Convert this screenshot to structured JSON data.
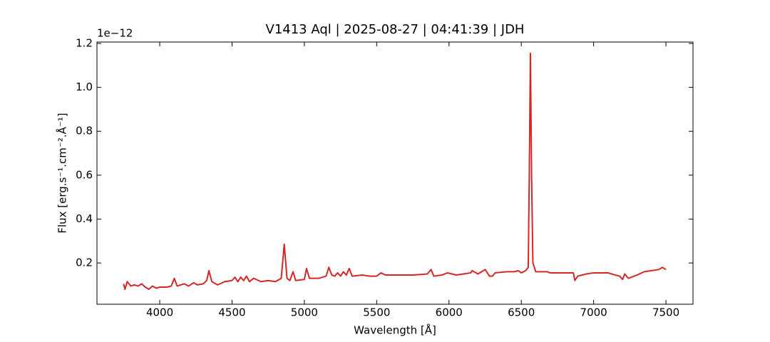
{
  "chart_data": {
    "type": "line",
    "title": "V1413 Aql | 2025-08-27 | 04:41:39 | JDH",
    "x_label": "Wavelength [Å]",
    "y_label": "Flux [erg.s⁻¹.cm⁻².Å⁻¹]",
    "y_offset_label": "1e−12",
    "xlim": [
      3566,
      7687
    ],
    "ylim": [
      0.012,
      1.2065
    ],
    "xticks": [
      4000,
      4500,
      5000,
      5500,
      6000,
      6500,
      7000,
      7500
    ],
    "yticks": [
      0.2,
      0.4,
      0.6,
      0.8,
      {
        "value": 1,
        "label": "1.0"
      },
      1.2
    ],
    "series": [
      {
        "color": "#d62728",
        "x": [
          3750,
          3760,
          3775,
          3800,
          3825,
          3850,
          3875,
          3900,
          3925,
          3950,
          3975,
          4000,
          4050,
          4080,
          4101,
          4120,
          4170,
          4200,
          4235,
          4260,
          4300,
          4325,
          4340,
          4360,
          4400,
          4450,
          4500,
          4520,
          4540,
          4560,
          4580,
          4600,
          4620,
          4650,
          4700,
          4750,
          4800,
          4840,
          4861,
          4880,
          4900,
          4922,
          4940,
          5000,
          5015,
          5035,
          5100,
          5150,
          5169,
          5190,
          5210,
          5230,
          5250,
          5270,
          5290,
          5310,
          5330,
          5400,
          5450,
          5500,
          5530,
          5560,
          5650,
          5750,
          5850,
          5876,
          5895,
          5950,
          5990,
          6050,
          6100,
          6150,
          6160,
          6200,
          6250,
          6280,
          6300,
          6320,
          6400,
          6450,
          6480,
          6500,
          6530,
          6548,
          6555,
          6563,
          6571,
          6580,
          6600,
          6680,
          6700,
          6800,
          6860,
          6870,
          6890,
          6950,
          7000,
          7050,
          7100,
          7150,
          7180,
          7200,
          7215,
          7240,
          7300,
          7350,
          7400,
          7450,
          7475,
          7500
        ],
        "values": [
          0.105,
          0.08,
          0.115,
          0.095,
          0.1,
          0.095,
          0.105,
          0.09,
          0.08,
          0.095,
          0.085,
          0.09,
          0.09,
          0.095,
          0.13,
          0.095,
          0.105,
          0.095,
          0.11,
          0.1,
          0.105,
          0.12,
          0.165,
          0.115,
          0.1,
          0.115,
          0.12,
          0.135,
          0.115,
          0.135,
          0.12,
          0.14,
          0.115,
          0.13,
          0.115,
          0.12,
          0.115,
          0.13,
          0.285,
          0.13,
          0.12,
          0.16,
          0.12,
          0.125,
          0.175,
          0.13,
          0.13,
          0.14,
          0.18,
          0.145,
          0.14,
          0.155,
          0.14,
          0.16,
          0.145,
          0.175,
          0.14,
          0.145,
          0.14,
          0.14,
          0.155,
          0.145,
          0.145,
          0.145,
          0.15,
          0.17,
          0.14,
          0.145,
          0.155,
          0.145,
          0.15,
          0.155,
          0.165,
          0.15,
          0.17,
          0.14,
          0.14,
          0.155,
          0.16,
          0.16,
          0.165,
          0.155,
          0.165,
          0.18,
          0.6,
          1.155,
          0.6,
          0.2,
          0.16,
          0.16,
          0.155,
          0.155,
          0.155,
          0.12,
          0.14,
          0.15,
          0.155,
          0.155,
          0.155,
          0.145,
          0.14,
          0.125,
          0.15,
          0.13,
          0.145,
          0.16,
          0.165,
          0.17,
          0.18,
          0.17
        ]
      }
    ]
  }
}
